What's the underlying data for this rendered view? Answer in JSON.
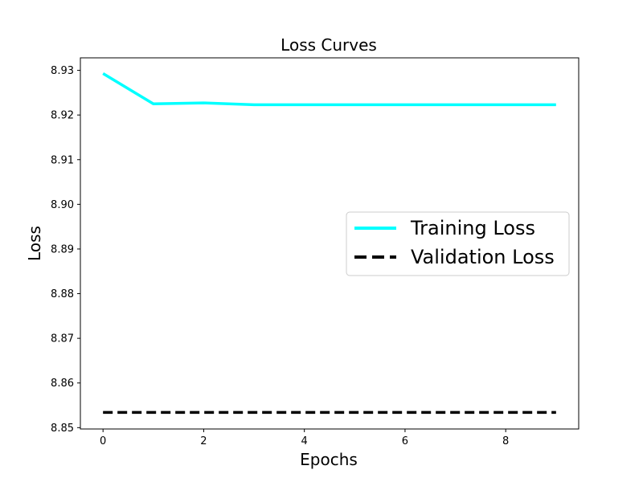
{
  "chart_data": {
    "type": "line",
    "title": "Loss Curves",
    "xlabel": "Epochs",
    "ylabel": "Loss",
    "xlim": [
      -0.45,
      9.45
    ],
    "ylim": [
      8.8497,
      8.9328
    ],
    "x_ticks": [
      0,
      2,
      4,
      6,
      8
    ],
    "y_ticks": [
      8.85,
      8.86,
      8.87,
      8.88,
      8.89,
      8.9,
      8.91,
      8.92,
      8.93
    ],
    "y_tick_labels": [
      "8.85",
      "8.86",
      "8.87",
      "8.88",
      "8.89",
      "8.90",
      "8.91",
      "8.92",
      "8.93"
    ],
    "x": [
      0,
      1,
      2,
      3,
      4,
      5,
      6,
      7,
      8,
      9
    ],
    "series": [
      {
        "name": "Training Loss",
        "color": "#00ffff",
        "style": "solid",
        "values": [
          8.9293,
          8.9225,
          8.9227,
          8.9223,
          8.9223,
          8.9223,
          8.9223,
          8.9223,
          8.9223,
          8.9223
        ]
      },
      {
        "name": "Validation Loss",
        "color": "#000000",
        "style": "dashed",
        "values": [
          8.8534,
          8.8534,
          8.8534,
          8.8534,
          8.8534,
          8.8534,
          8.8534,
          8.8534,
          8.8534,
          8.8534
        ]
      }
    ],
    "legend_position": "center-right",
    "grid": false
  }
}
